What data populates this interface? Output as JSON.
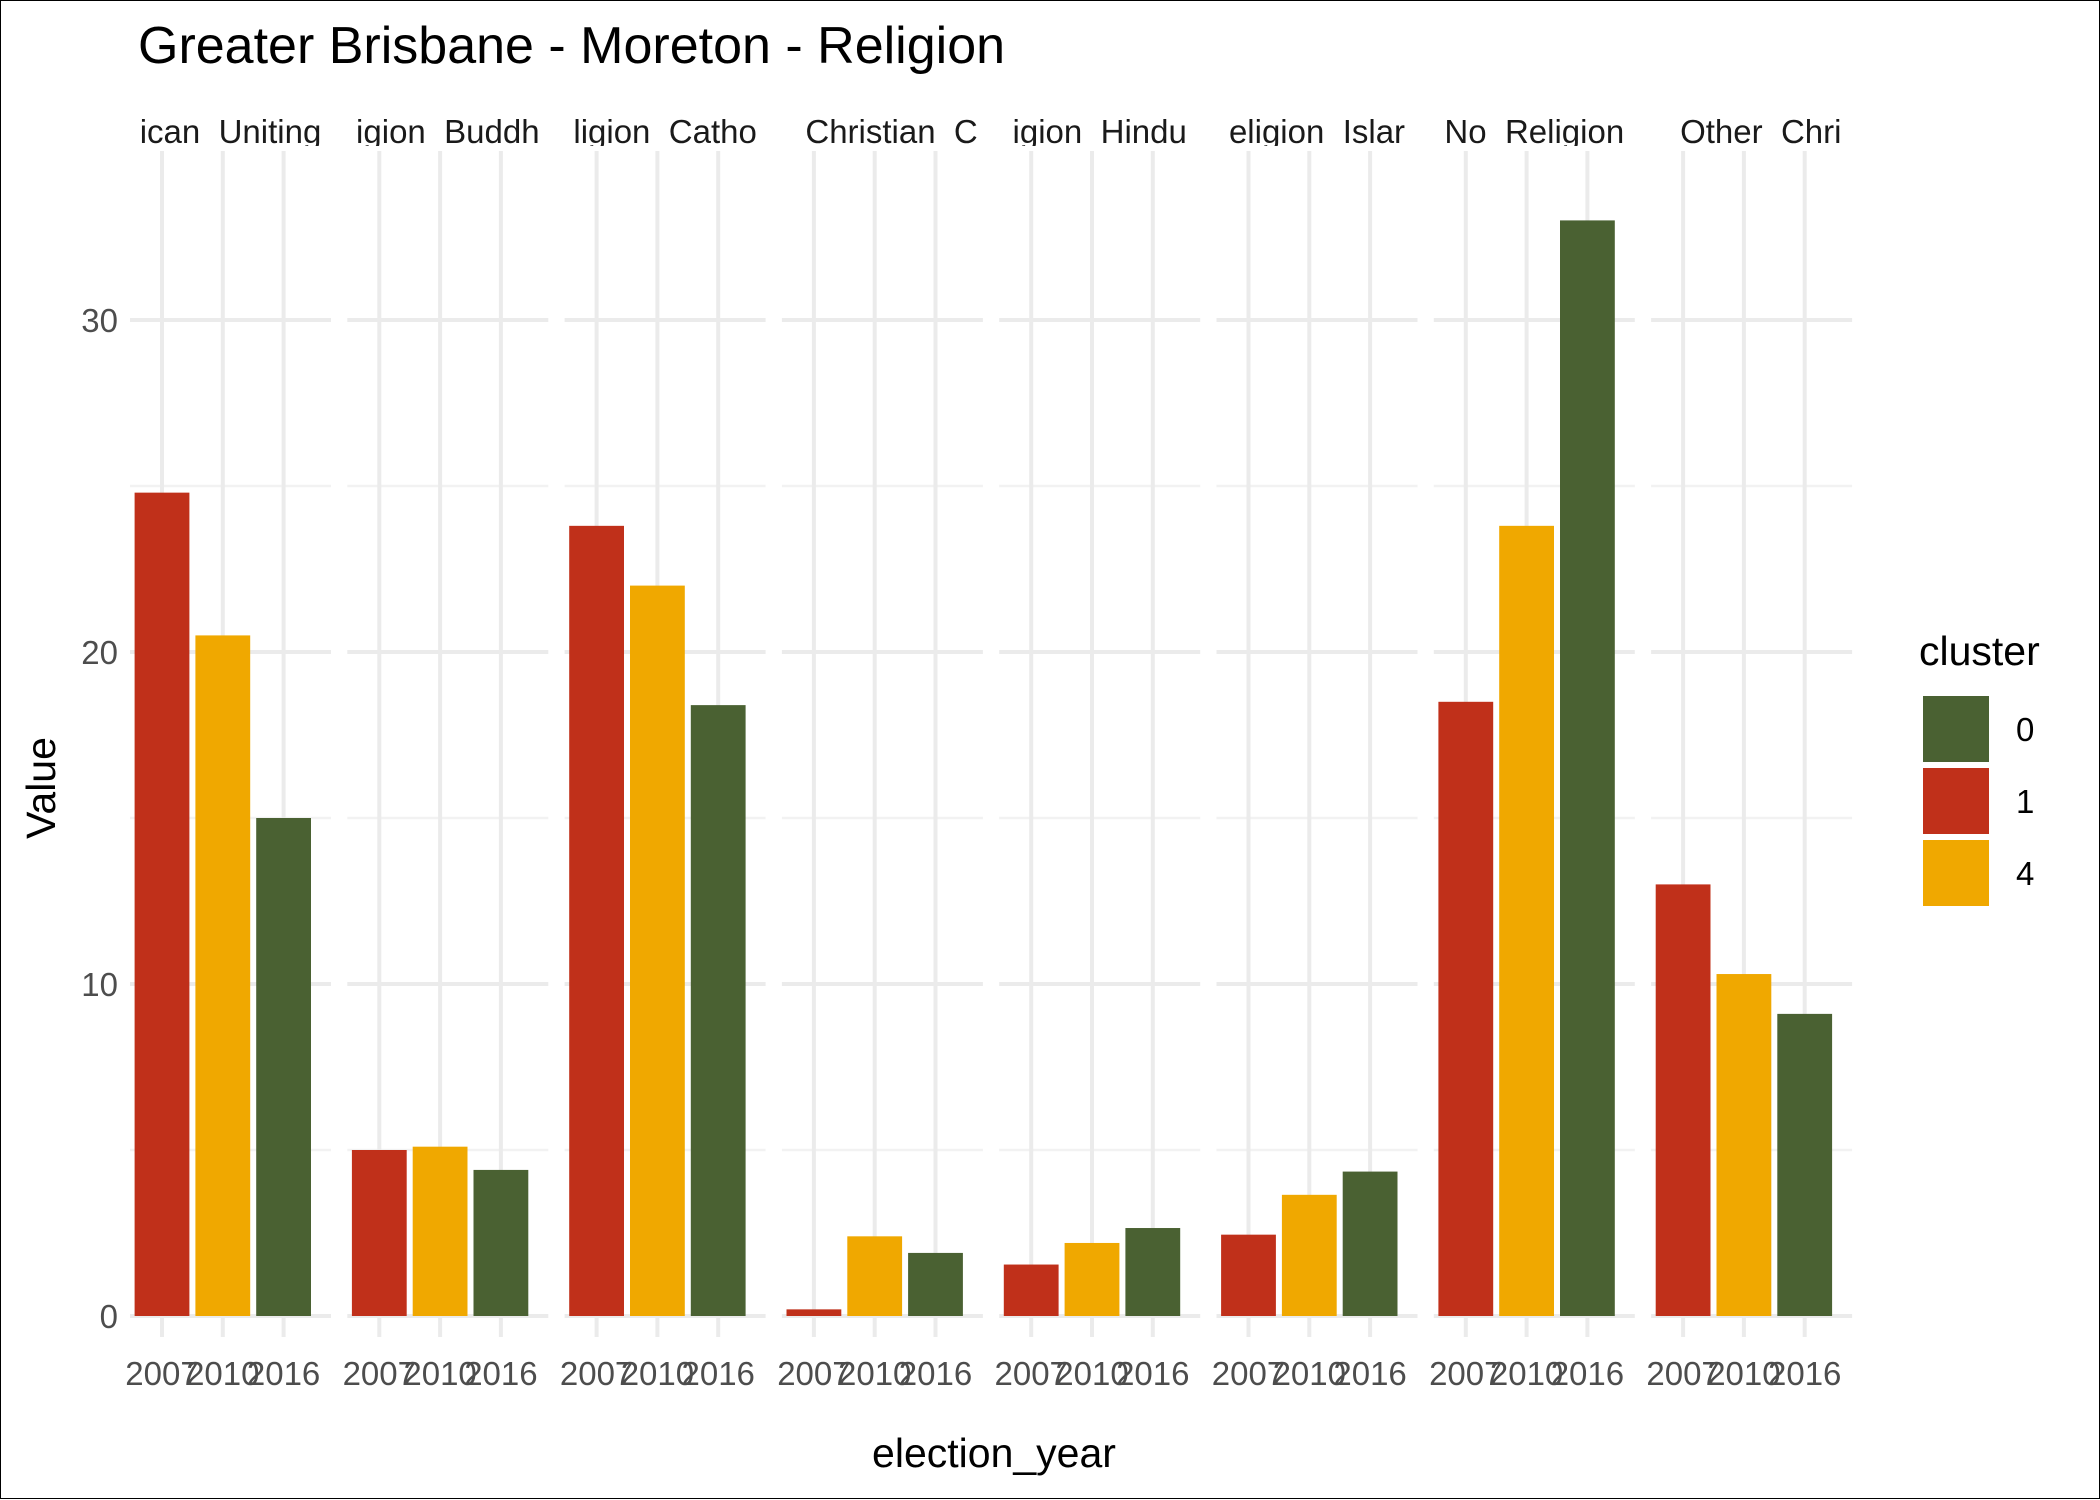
{
  "chart_data": {
    "type": "bar",
    "title": "Greater Brisbane - Moreton - Religion",
    "xlabel": "election_year",
    "ylabel": "Value",
    "ylim": [
      0,
      35
    ],
    "y_ticks": [
      0,
      10,
      20,
      30
    ],
    "grid": true,
    "legend": {
      "title": "cluster",
      "position": "right",
      "entries": [
        {
          "label": "0",
          "color": "#4a6132"
        },
        {
          "label": "1",
          "color": "#c0301a"
        },
        {
          "label": "4",
          "color": "#f0a800"
        }
      ]
    },
    "categories": [
      "2007",
      "2010",
      "2016"
    ],
    "facets": [
      {
        "label": "ican_Uniting",
        "values": [
          24.8,
          20.5,
          15.0
        ],
        "clusters": [
          "1",
          "4",
          "0"
        ]
      },
      {
        "label": "igion_Buddh",
        "values": [
          5.0,
          5.1,
          4.4
        ],
        "clusters": [
          "1",
          "4",
          "0"
        ]
      },
      {
        "label": "ligion_Catho",
        "values": [
          23.8,
          22.0,
          18.4
        ],
        "clusters": [
          "1",
          "4",
          "0"
        ]
      },
      {
        "label": "_Christian_C",
        "values": [
          0.2,
          2.4,
          1.9
        ],
        "clusters": [
          "1",
          "4",
          "0"
        ]
      },
      {
        "label": "igion_Hindu",
        "values": [
          1.55,
          2.2,
          2.65
        ],
        "clusters": [
          "1",
          "4",
          "0"
        ]
      },
      {
        "label": "eligion_Islar",
        "values": [
          2.45,
          3.65,
          4.35
        ],
        "clusters": [
          "1",
          "4",
          "0"
        ]
      },
      {
        "label": "No_Religion",
        "values": [
          18.5,
          23.8,
          33.0
        ],
        "clusters": [
          "1",
          "4",
          "0"
        ]
      },
      {
        "label": "_Other_Chri",
        "values": [
          13.0,
          10.3,
          9.1
        ],
        "clusters": [
          "1",
          "4",
          "0"
        ]
      }
    ]
  }
}
